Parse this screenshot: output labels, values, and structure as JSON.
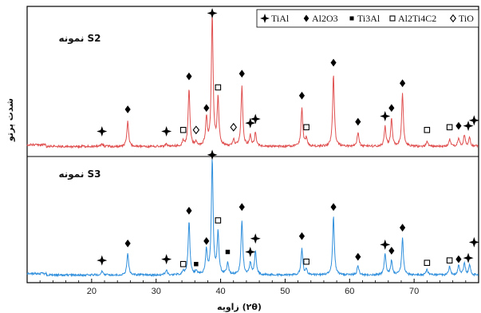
{
  "chart_data": {
    "type": "line",
    "xlabel": "زاویه (۲θ)",
    "ylabel": "شدت پرتو",
    "xlim": [
      10,
      80
    ],
    "xticks": [
      20,
      30,
      40,
      50,
      60,
      70
    ],
    "grid": false,
    "legend_position": "top-right",
    "legend": [
      {
        "marker": "plus-star",
        "label": "TiAl"
      },
      {
        "marker": "diamond",
        "label": "Al2O3"
      },
      {
        "marker": "square",
        "label": "Ti3Al"
      },
      {
        "marker": "open-square",
        "label": "Al2Ti4C2"
      },
      {
        "marker": "open-diamond",
        "label": "TiO"
      }
    ],
    "series": [
      {
        "name": "نمونه S2",
        "color": "#e05050",
        "baseline": 0.05,
        "peaks": [
          {
            "x": 21.6,
            "h": 0.02
          },
          {
            "x": 25.6,
            "h": 0.18
          },
          {
            "x": 31.6,
            "h": 0.02
          },
          {
            "x": 34.2,
            "h": 0.04
          },
          {
            "x": 35.1,
            "h": 0.42
          },
          {
            "x": 36.2,
            "h": 0.03
          },
          {
            "x": 37.8,
            "h": 0.2
          },
          {
            "x": 38.7,
            "h": 0.95
          },
          {
            "x": 39.6,
            "h": 0.34
          },
          {
            "x": 42.0,
            "h": 0.05
          },
          {
            "x": 43.3,
            "h": 0.44
          },
          {
            "x": 44.6,
            "h": 0.08
          },
          {
            "x": 45.4,
            "h": 0.1
          },
          {
            "x": 52.6,
            "h": 0.28
          },
          {
            "x": 53.3,
            "h": 0.06
          },
          {
            "x": 57.5,
            "h": 0.52
          },
          {
            "x": 61.3,
            "h": 0.1
          },
          {
            "x": 65.5,
            "h": 0.14
          },
          {
            "x": 66.5,
            "h": 0.2
          },
          {
            "x": 68.2,
            "h": 0.38
          },
          {
            "x": 72.0,
            "h": 0.04
          },
          {
            "x": 75.5,
            "h": 0.05
          },
          {
            "x": 76.9,
            "h": 0.06
          },
          {
            "x": 77.8,
            "h": 0.08
          },
          {
            "x": 78.6,
            "h": 0.06
          }
        ],
        "markers": [
          {
            "type": "plus-star",
            "x": 21.6,
            "y": 0.16
          },
          {
            "type": "diamond",
            "x": 25.6,
            "y": 0.32
          },
          {
            "type": "plus-star",
            "x": 31.6,
            "y": 0.16
          },
          {
            "type": "open-square",
            "x": 34.2,
            "y": 0.17
          },
          {
            "type": "diamond",
            "x": 35.1,
            "y": 0.56
          },
          {
            "type": "open-diamond",
            "x": 36.2,
            "y": 0.17
          },
          {
            "type": "diamond",
            "x": 37.8,
            "y": 0.33
          },
          {
            "type": "plus-star",
            "x": 38.7,
            "y": 1.02
          },
          {
            "type": "open-square",
            "x": 39.6,
            "y": 0.48
          },
          {
            "type": "open-diamond",
            "x": 42.0,
            "y": 0.19
          },
          {
            "type": "diamond",
            "x": 43.3,
            "y": 0.58
          },
          {
            "type": "plus-star",
            "x": 44.6,
            "y": 0.22
          },
          {
            "type": "plus-star",
            "x": 45.4,
            "y": 0.25
          },
          {
            "type": "diamond",
            "x": 52.6,
            "y": 0.42
          },
          {
            "type": "open-square",
            "x": 53.3,
            "y": 0.19
          },
          {
            "type": "diamond",
            "x": 57.5,
            "y": 0.66
          },
          {
            "type": "diamond",
            "x": 61.3,
            "y": 0.23
          },
          {
            "type": "plus-star",
            "x": 65.5,
            "y": 0.27
          },
          {
            "type": "diamond",
            "x": 66.5,
            "y": 0.33
          },
          {
            "type": "diamond",
            "x": 68.2,
            "y": 0.51
          },
          {
            "type": "open-square",
            "x": 72.0,
            "y": 0.17
          },
          {
            "type": "open-square",
            "x": 75.5,
            "y": 0.19
          },
          {
            "type": "diamond",
            "x": 76.9,
            "y": 0.2
          },
          {
            "type": "plus-star",
            "x": 78.4,
            "y": 0.2
          },
          {
            "type": "plus-star",
            "x": 79.3,
            "y": 0.24
          }
        ]
      },
      {
        "name": "نمونه S3",
        "color": "#2f8fdc",
        "baseline": 0.05,
        "peaks": [
          {
            "x": 21.6,
            "h": 0.03
          },
          {
            "x": 25.6,
            "h": 0.18
          },
          {
            "x": 31.6,
            "h": 0.04
          },
          {
            "x": 34.2,
            "h": 0.03
          },
          {
            "x": 35.1,
            "h": 0.44
          },
          {
            "x": 36.2,
            "h": 0.03
          },
          {
            "x": 37.8,
            "h": 0.2
          },
          {
            "x": 38.7,
            "h": 0.95
          },
          {
            "x": 39.6,
            "h": 0.34
          },
          {
            "x": 41.1,
            "h": 0.1
          },
          {
            "x": 43.3,
            "h": 0.45
          },
          {
            "x": 44.6,
            "h": 0.1
          },
          {
            "x": 45.4,
            "h": 0.2
          },
          {
            "x": 52.6,
            "h": 0.22
          },
          {
            "x": 53.3,
            "h": 0.04
          },
          {
            "x": 57.5,
            "h": 0.48
          },
          {
            "x": 61.3,
            "h": 0.08
          },
          {
            "x": 65.5,
            "h": 0.18
          },
          {
            "x": 66.5,
            "h": 0.12
          },
          {
            "x": 68.2,
            "h": 0.3
          },
          {
            "x": 72.0,
            "h": 0.05
          },
          {
            "x": 75.5,
            "h": 0.07
          },
          {
            "x": 76.9,
            "h": 0.08
          },
          {
            "x": 77.8,
            "h": 0.1
          },
          {
            "x": 78.6,
            "h": 0.08
          }
        ],
        "markers": [
          {
            "type": "plus-star",
            "x": 21.6,
            "y": 0.17
          },
          {
            "type": "diamond",
            "x": 25.6,
            "y": 0.31
          },
          {
            "type": "plus-star",
            "x": 31.6,
            "y": 0.18
          },
          {
            "type": "open-square",
            "x": 34.2,
            "y": 0.14
          },
          {
            "type": "square",
            "x": 36.2,
            "y": 0.14
          },
          {
            "type": "diamond",
            "x": 35.1,
            "y": 0.58
          },
          {
            "type": "diamond",
            "x": 37.8,
            "y": 0.33
          },
          {
            "type": "plus-star",
            "x": 38.7,
            "y": 1.04
          },
          {
            "type": "open-square",
            "x": 39.6,
            "y": 0.5
          },
          {
            "type": "square",
            "x": 41.1,
            "y": 0.24
          },
          {
            "type": "diamond",
            "x": 43.3,
            "y": 0.61
          },
          {
            "type": "plus-star",
            "x": 44.6,
            "y": 0.24
          },
          {
            "type": "plus-star",
            "x": 45.4,
            "y": 0.35
          },
          {
            "type": "diamond",
            "x": 52.6,
            "y": 0.37
          },
          {
            "type": "open-square",
            "x": 53.3,
            "y": 0.16
          },
          {
            "type": "diamond",
            "x": 57.5,
            "y": 0.61
          },
          {
            "type": "diamond",
            "x": 61.3,
            "y": 0.2
          },
          {
            "type": "plus-star",
            "x": 65.5,
            "y": 0.3
          },
          {
            "type": "diamond",
            "x": 66.5,
            "y": 0.25
          },
          {
            "type": "diamond",
            "x": 68.2,
            "y": 0.44
          },
          {
            "type": "open-square",
            "x": 72.0,
            "y": 0.15
          },
          {
            "type": "open-square",
            "x": 75.5,
            "y": 0.17
          },
          {
            "type": "diamond",
            "x": 76.9,
            "y": 0.18
          },
          {
            "type": "plus-star",
            "x": 78.4,
            "y": 0.19
          },
          {
            "type": "plus-star",
            "x": 79.3,
            "y": 0.32
          }
        ]
      }
    ]
  }
}
